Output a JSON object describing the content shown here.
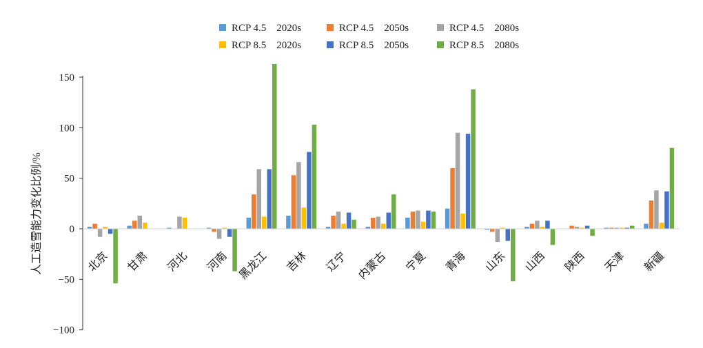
{
  "chart_data": {
    "type": "bar",
    "ylabel": "人工造雪能力变化比例/%",
    "ylim": [
      -100,
      150
    ],
    "yticks": [
      150,
      100,
      50,
      0,
      -50,
      -100
    ],
    "ytick_labels": [
      "150",
      "100",
      "50",
      "0",
      "−50",
      "−100"
    ],
    "grid": false,
    "legend_position": "top",
    "categories": [
      "北京",
      "甘肃",
      "河北",
      "河南",
      "黑龙江",
      "吉林",
      "辽宁",
      "内蒙古",
      "宁夏",
      "青海",
      "山东",
      "山西",
      "陕西",
      "天津",
      "新疆"
    ],
    "series": [
      {
        "name": "RCP 4.5    2020s",
        "color": "#5b9bd5",
        "values": [
          2,
          3,
          1,
          1,
          11,
          13,
          2,
          2,
          11,
          20,
          -1,
          2,
          0,
          1,
          5
        ]
      },
      {
        "name": "RCP 4.5    2050s",
        "color": "#ed7d31",
        "values": [
          5,
          8,
          0,
          -3,
          34,
          53,
          13,
          11,
          17,
          60,
          -3,
          5,
          3,
          1,
          28
        ]
      },
      {
        "name": "RCP 4.5    2080s",
        "color": "#a5a5a5",
        "values": [
          -8,
          13,
          12,
          -10,
          59,
          66,
          17,
          12,
          18,
          95,
          -13,
          8,
          2,
          1,
          38
        ]
      },
      {
        "name": "RCP 8.5    2020s",
        "color": "#ffc000",
        "values": [
          2,
          6,
          11,
          1,
          12,
          21,
          5,
          5,
          7,
          15,
          1,
          2,
          1,
          1,
          6
        ]
      },
      {
        "name": "RCP 8.5    2050s",
        "color": "#4472c4",
        "values": [
          -5,
          0,
          0,
          -8,
          59,
          76,
          16,
          16,
          18,
          94,
          -12,
          8,
          3,
          1,
          37
        ]
      },
      {
        "name": "RCP 8.5    2080s",
        "color": "#70ad47",
        "values": [
          -54,
          0,
          0,
          -42,
          163,
          103,
          9,
          34,
          17,
          138,
          -52,
          -16,
          -7,
          3,
          80
        ]
      }
    ]
  }
}
